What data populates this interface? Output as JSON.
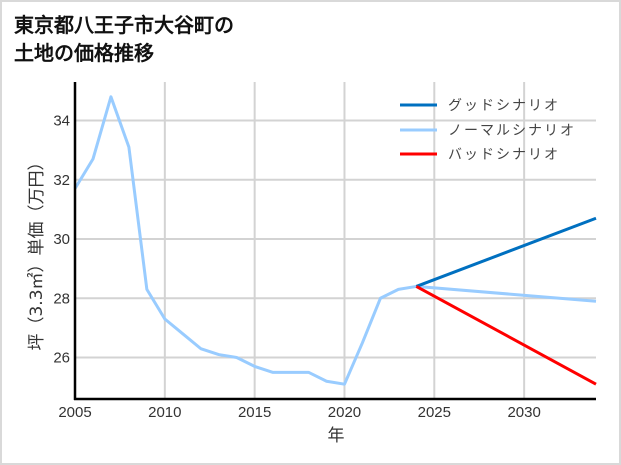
{
  "title_lines": [
    "東京都八王子市大谷町の",
    "土地の価格推移"
  ],
  "colors": {
    "good": "#0070c0",
    "normal": "#99ccff",
    "bad": "#ff0000",
    "grid": "#d3d3d3",
    "axis": "#000000"
  },
  "chart_data": {
    "type": "line",
    "title": "東京都八王子市大谷町の土地の価格推移",
    "xlabel": "年",
    "ylabel": "坪（3.3㎡）単価（万円）",
    "xlim": [
      2005,
      2034
    ],
    "ylim": [
      24.6,
      35.3
    ],
    "grid": true,
    "legend_position": "upper right",
    "x_ticks": [
      2005,
      2010,
      2015,
      2020,
      2025,
      2030
    ],
    "y_ticks": [
      26,
      28,
      30,
      32,
      34
    ],
    "series": [
      {
        "name": "グッドシナリオ",
        "color": "#0070c0",
        "x": [
          2024,
          2034
        ],
        "values": [
          28.4,
          30.7
        ]
      },
      {
        "name": "ノーマルシナリオ",
        "color": "#99ccff",
        "x": [
          2005,
          2006,
          2007,
          2008,
          2009,
          2010,
          2011,
          2012,
          2013,
          2014,
          2015,
          2016,
          2017,
          2018,
          2019,
          2020,
          2021,
          2022,
          2023,
          2024,
          2034
        ],
        "values": [
          31.7,
          32.7,
          34.8,
          33.1,
          28.3,
          27.3,
          26.8,
          26.3,
          26.1,
          26.0,
          25.7,
          25.5,
          25.5,
          25.5,
          25.2,
          25.1,
          26.5,
          28.0,
          28.3,
          28.4,
          27.9
        ]
      },
      {
        "name": "バッドシナリオ",
        "color": "#ff0000",
        "x": [
          2024,
          2034
        ],
        "values": [
          28.4,
          25.1
        ]
      }
    ],
    "legend": [
      "グッドシナリオ",
      "ノーマルシナリオ",
      "バッドシナリオ"
    ]
  }
}
